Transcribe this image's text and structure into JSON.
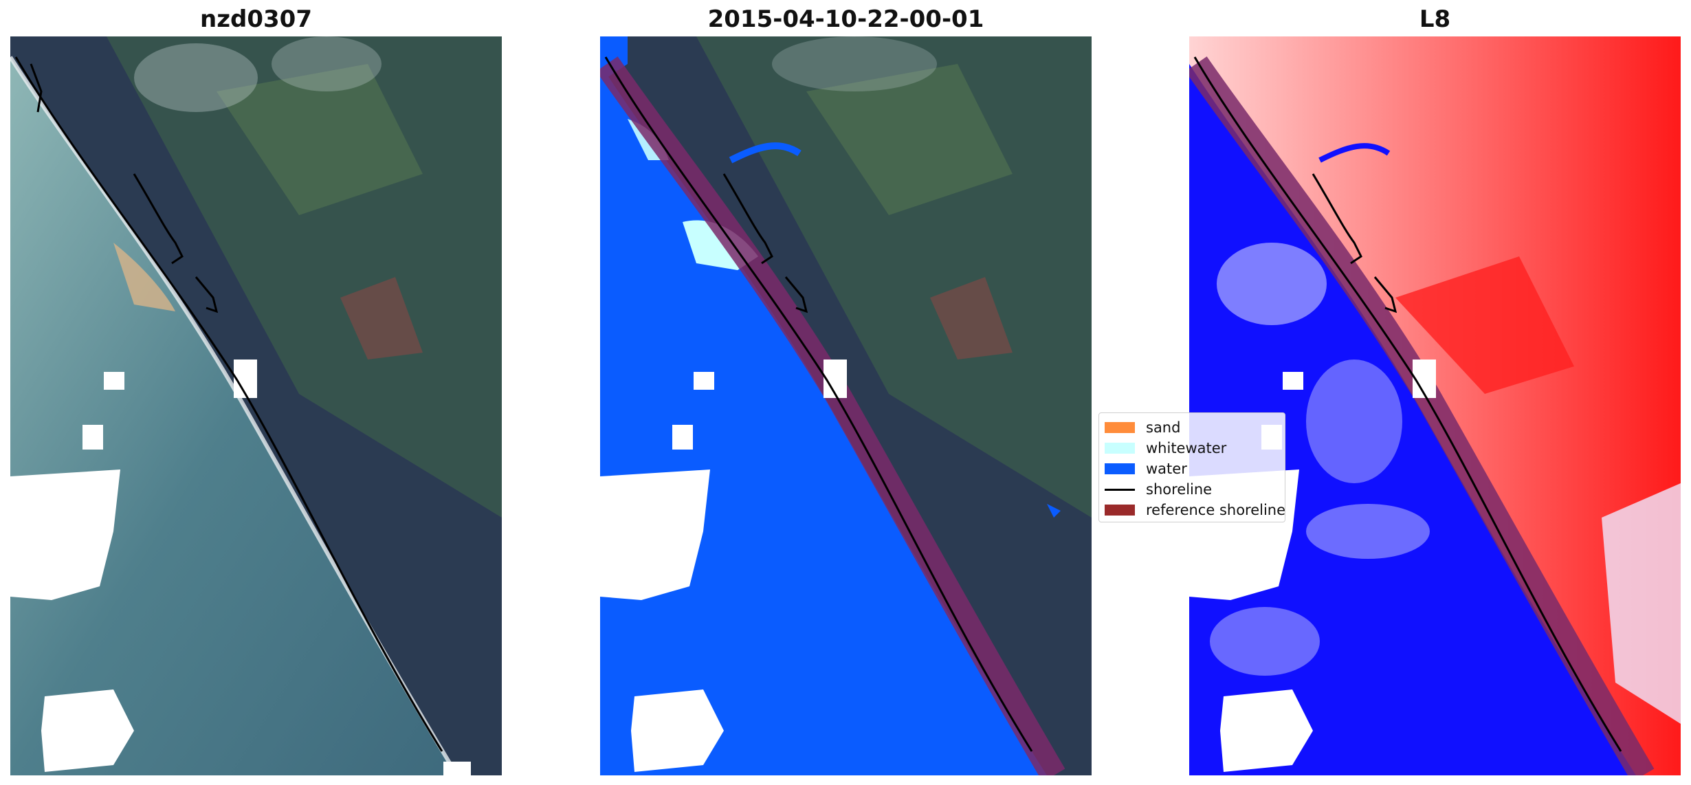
{
  "panels": [
    {
      "title": "nzd0307"
    },
    {
      "title": "2015-04-10-22-00-01"
    },
    {
      "title": "L8"
    }
  ],
  "legend": {
    "items": [
      {
        "label": "sand",
        "color": "#ff8c3a",
        "kind": "patch"
      },
      {
        "label": "whitewater",
        "color": "#c8ffff",
        "kind": "patch"
      },
      {
        "label": "water",
        "color": "#0a5cff",
        "kind": "patch"
      },
      {
        "label": "shoreline",
        "color": "#000000",
        "kind": "line"
      },
      {
        "label": "reference shoreline",
        "color": "#9a2a2a",
        "kind": "patch"
      }
    ]
  },
  "colors": {
    "land_dark": "#2b3b52",
    "land_green": "#3f5f4a",
    "sea_rgb": "#4f7f8c",
    "water_class": "#0a5cff",
    "index_blue": "#1010ff",
    "index_red": "#ff2020",
    "reference_band": "#7a2a6a",
    "cloud_mask": "#ffffff"
  }
}
